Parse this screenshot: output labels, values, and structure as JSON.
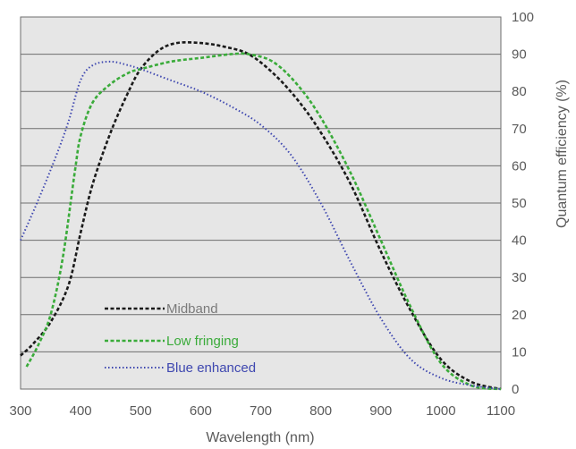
{
  "chart_data": {
    "type": "line",
    "xlabel": "Wavelength (nm)",
    "ylabel": "Quantum efficiency (%)",
    "xlim": [
      300,
      1100
    ],
    "ylim": [
      0,
      100
    ],
    "x_ticks": [
      "300",
      "400",
      "500",
      "600",
      "700",
      "800",
      "900",
      "1000",
      "1100"
    ],
    "y_ticks": [
      "0",
      "10",
      "20",
      "30",
      "40",
      "50",
      "60",
      "70",
      "80",
      "90",
      "100"
    ],
    "y_axis_side": "right",
    "grid": "horizontal",
    "plot_background": "#e6e6e6",
    "legend_position": "bottom-left",
    "series": [
      {
        "name": "Midband",
        "color": "#1a1a1a",
        "style": "dashed",
        "x": [
          300,
          320,
          350,
          380,
          400,
          420,
          450,
          480,
          500,
          530,
          560,
          600,
          640,
          680,
          720,
          760,
          800,
          850,
          900,
          950,
          1000,
          1050,
          1100
        ],
        "y": [
          9,
          12,
          18,
          28,
          42,
          55,
          69,
          80,
          86,
          91,
          93,
          93,
          92,
          90,
          85,
          78,
          69,
          55,
          37,
          21,
          8,
          2,
          0
        ]
      },
      {
        "name": "Low fringing",
        "color": "#3aab3a",
        "style": "dashed",
        "x": [
          310,
          330,
          350,
          370,
          390,
          400,
          420,
          450,
          480,
          500,
          550,
          600,
          650,
          680,
          720,
          760,
          800,
          850,
          900,
          950,
          1000,
          1050,
          1100
        ],
        "y": [
          6,
          12,
          20,
          35,
          58,
          68,
          77,
          82,
          85,
          86,
          88,
          89,
          90,
          90,
          88,
          82,
          73,
          58,
          40,
          22,
          7,
          1,
          0
        ]
      },
      {
        "name": "Blue enhanced",
        "color": "#3f48b0",
        "style": "dotted",
        "x": [
          300,
          330,
          360,
          380,
          400,
          420,
          450,
          480,
          500,
          550,
          600,
          650,
          700,
          750,
          800,
          850,
          900,
          950,
          1000,
          1050,
          1100
        ],
        "y": [
          40,
          51,
          63,
          72,
          83,
          87,
          88,
          87,
          86,
          83,
          80,
          76,
          71,
          63,
          50,
          34,
          19,
          8,
          3,
          1,
          0
        ]
      }
    ]
  }
}
